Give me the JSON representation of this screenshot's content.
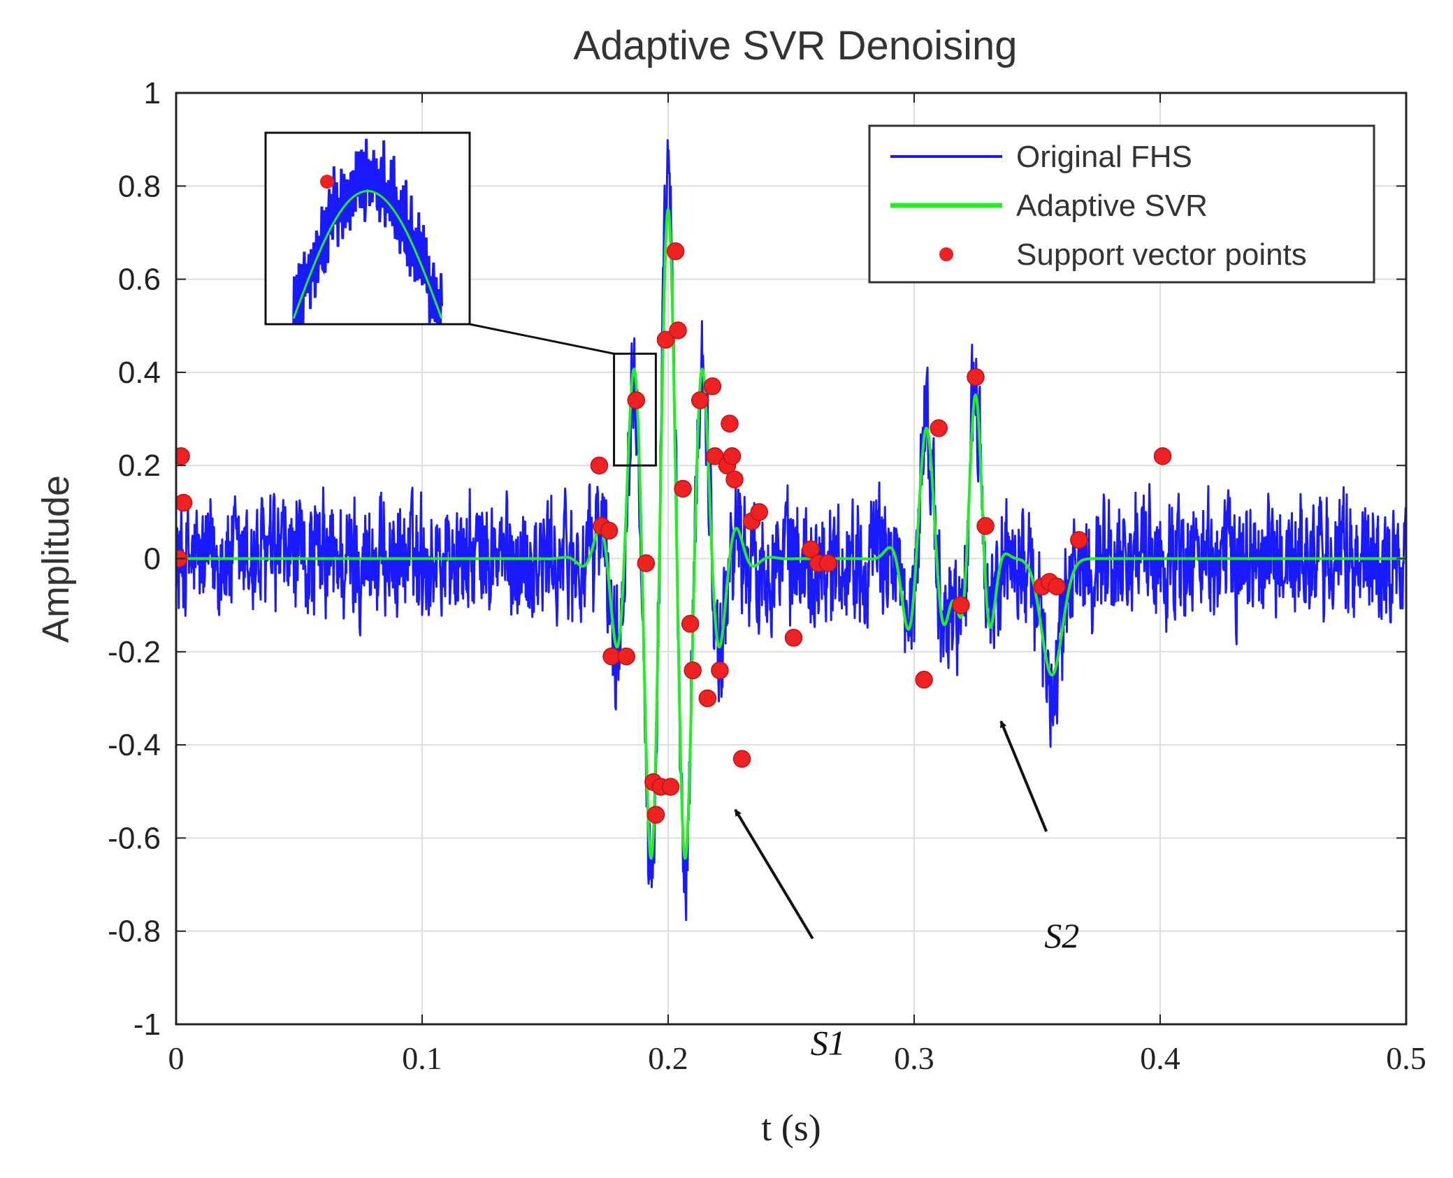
{
  "chart_data": {
    "type": "line",
    "title": "Adaptive SVR Denoising",
    "xlabel": "t (s)",
    "ylabel": "Amplitude",
    "xlim": [
      0,
      0.5
    ],
    "ylim": [
      -1,
      1
    ],
    "grid": true,
    "legend_position": "top-right",
    "x_ticks": [
      {
        "value": 0,
        "label": "0"
      },
      {
        "value": 0.1,
        "label": "0.1"
      },
      {
        "value": 0.2,
        "label": "0.2"
      },
      {
        "value": 0.3,
        "label": "0.3"
      },
      {
        "value": 0.4,
        "label": "0.4"
      },
      {
        "value": 0.5,
        "label": "0.5"
      }
    ],
    "y_ticks": [
      {
        "value": 1,
        "label": "1"
      },
      {
        "value": 0.8,
        "label": "0.8"
      },
      {
        "value": 0.6,
        "label": "0.6"
      },
      {
        "value": 0.4,
        "label": "0.4"
      },
      {
        "value": 0.2,
        "label": "0.2"
      },
      {
        "value": 0,
        "label": "0"
      },
      {
        "value": -0.2,
        "label": "-0.2"
      },
      {
        "value": -0.4,
        "label": "-0.4"
      },
      {
        "value": -0.6,
        "label": "-0.6"
      },
      {
        "value": -0.8,
        "label": "-0.8"
      },
      {
        "value": -1,
        "label": "-1"
      }
    ],
    "series": [
      {
        "name": "Original FHS",
        "color": "#1a1aff",
        "style": "line",
        "noise_amplitude": 0.17,
        "events": [
          {
            "t": 0.2,
            "amp": 0.75,
            "width": 0.018,
            "freq": 70
          },
          {
            "t": 0.305,
            "amp": 0.28,
            "width": 0.01,
            "freq": 60
          },
          {
            "t": 0.325,
            "amp": 0.35,
            "width": 0.007,
            "freq": 70
          },
          {
            "t": 0.356,
            "amp": -0.25,
            "width": 0.006,
            "freq": 0
          }
        ]
      },
      {
        "name": "Adaptive SVR",
        "color": "#22ee22",
        "style": "line"
      },
      {
        "name": "Support vector points",
        "color": "#ee2222",
        "style": "marker",
        "points": [
          [
            0.002,
            0.22
          ],
          [
            0.003,
            0.12
          ],
          [
            0.001,
            0.0
          ],
          [
            0.172,
            0.2
          ],
          [
            0.173,
            0.07
          ],
          [
            0.176,
            0.06
          ],
          [
            0.177,
            -0.21
          ],
          [
            0.183,
            -0.21
          ],
          [
            0.187,
            0.34
          ],
          [
            0.191,
            -0.01
          ],
          [
            0.194,
            -0.48
          ],
          [
            0.195,
            -0.55
          ],
          [
            0.197,
            -0.49
          ],
          [
            0.199,
            0.47
          ],
          [
            0.201,
            -0.49
          ],
          [
            0.203,
            0.66
          ],
          [
            0.204,
            0.49
          ],
          [
            0.206,
            0.15
          ],
          [
            0.209,
            -0.14
          ],
          [
            0.21,
            -0.24
          ],
          [
            0.213,
            0.34
          ],
          [
            0.216,
            -0.3
          ],
          [
            0.218,
            0.37
          ],
          [
            0.219,
            0.22
          ],
          [
            0.221,
            -0.24
          ],
          [
            0.224,
            0.2
          ],
          [
            0.225,
            0.29
          ],
          [
            0.226,
            0.22
          ],
          [
            0.227,
            0.17
          ],
          [
            0.23,
            -0.43
          ],
          [
            0.234,
            0.08
          ],
          [
            0.237,
            0.1
          ],
          [
            0.251,
            -0.17
          ],
          [
            0.258,
            0.02
          ],
          [
            0.261,
            -0.01
          ],
          [
            0.265,
            -0.01
          ],
          [
            0.304,
            -0.26
          ],
          [
            0.31,
            0.28
          ],
          [
            0.319,
            -0.1
          ],
          [
            0.325,
            0.39
          ],
          [
            0.329,
            0.07
          ],
          [
            0.352,
            -0.06
          ],
          [
            0.355,
            -0.05
          ],
          [
            0.358,
            -0.06
          ],
          [
            0.367,
            0.04
          ],
          [
            0.401,
            0.22
          ]
        ]
      }
    ],
    "annotations": [
      {
        "label": "S1",
        "target": [
          0.225,
          -0.53
        ],
        "text_at": [
          0.265,
          -0.84
        ]
      },
      {
        "label": "S2",
        "target": [
          0.333,
          -0.34
        ],
        "text_at": [
          0.36,
          -0.61
        ]
      }
    ],
    "inset": {
      "xlim": [
        0.178,
        0.195
      ],
      "ylim": [
        0.2,
        0.44
      ]
    }
  }
}
